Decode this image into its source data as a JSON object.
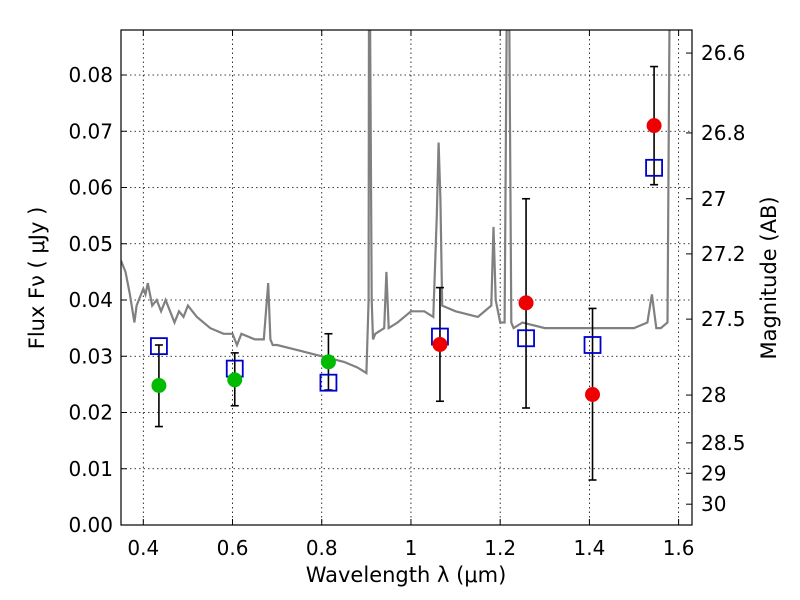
{
  "chart_data": {
    "type": "scatter",
    "xlabel": "Wavelength  λ (μm)",
    "ylabel": "Flux  Fν  ( μJy )",
    "y2label": "Magnitude (AB)",
    "xlim": [
      0.35,
      1.63
    ],
    "ylim": [
      0.0,
      0.088
    ],
    "x_ticks": [
      0.4,
      0.6,
      0.8,
      1.0,
      1.2,
      1.4,
      1.6
    ],
    "x_tick_labels": [
      "0.4",
      "0.6",
      "0.8",
      "1",
      "1.2",
      "1.4",
      "1.6"
    ],
    "y_ticks": [
      0.0,
      0.01,
      0.02,
      0.03,
      0.04,
      0.05,
      0.06,
      0.07,
      0.08
    ],
    "y_tick_labels": [
      "0.00",
      "0.01",
      "0.02",
      "0.03",
      "0.04",
      "0.05",
      "0.06",
      "0.07",
      "0.08"
    ],
    "y2_ticks": [
      {
        "label": "26.6",
        "flux": 0.0839
      },
      {
        "label": "26.8",
        "flux": 0.0697
      },
      {
        "label": "27",
        "flux": 0.058
      },
      {
        "label": "27.2",
        "flux": 0.0482
      },
      {
        "label": "27.5",
        "flux": 0.0366
      },
      {
        "label": "28",
        "flux": 0.0231
      },
      {
        "label": "28.5",
        "flux": 0.0146
      },
      {
        "label": "29",
        "flux": 0.0092
      },
      {
        "label": "30",
        "flux": 0.0037
      }
    ],
    "grid": true,
    "colors": {
      "model": "#808080",
      "green": "#00bb00",
      "red": "#ee0000",
      "square": "#0000cc",
      "errorbar": "#000000"
    },
    "series": [
      {
        "kind": "model_spectrum",
        "x": [
          0.35,
          0.36,
          0.37,
          0.38,
          0.385,
          0.39,
          0.4,
          0.405,
          0.41,
          0.42,
          0.43,
          0.44,
          0.45,
          0.46,
          0.47,
          0.48,
          0.49,
          0.5,
          0.52,
          0.55,
          0.58,
          0.6,
          0.61,
          0.62,
          0.65,
          0.67,
          0.68,
          0.685,
          0.69,
          0.7,
          0.75,
          0.8,
          0.85,
          0.88,
          0.9,
          0.905,
          0.906,
          0.908,
          0.912,
          0.915,
          0.92,
          0.94,
          0.945,
          0.95,
          0.97,
          1.0,
          1.03,
          1.05,
          1.058,
          1.062,
          1.066,
          1.07,
          1.1,
          1.15,
          1.18,
          1.185,
          1.19,
          1.2,
          1.21,
          1.215,
          1.22,
          1.225,
          1.23,
          1.25,
          1.3,
          1.35,
          1.4,
          1.45,
          1.5,
          1.53,
          1.54,
          1.55,
          1.56,
          1.575,
          1.58,
          1.582,
          1.585,
          1.59,
          1.63
        ],
        "y": [
          0.047,
          0.045,
          0.041,
          0.036,
          0.039,
          0.04,
          0.042,
          0.041,
          0.043,
          0.039,
          0.04,
          0.038,
          0.04,
          0.038,
          0.036,
          0.038,
          0.037,
          0.039,
          0.037,
          0.035,
          0.034,
          0.034,
          0.032,
          0.034,
          0.033,
          0.033,
          0.043,
          0.033,
          0.032,
          0.032,
          0.031,
          0.03,
          0.029,
          0.028,
          0.027,
          0.04,
          0.095,
          0.095,
          0.04,
          0.033,
          0.034,
          0.035,
          0.045,
          0.035,
          0.036,
          0.038,
          0.038,
          0.037,
          0.055,
          0.068,
          0.058,
          0.039,
          0.038,
          0.037,
          0.039,
          0.053,
          0.04,
          0.036,
          0.036,
          0.095,
          0.095,
          0.036,
          0.035,
          0.036,
          0.035,
          0.035,
          0.035,
          0.035,
          0.035,
          0.036,
          0.041,
          0.035,
          0.035,
          0.036,
          0.095,
          0.095,
          0.095,
          0.095,
          0.095
        ]
      },
      {
        "kind": "observed_green",
        "x": [
          0.435,
          0.605,
          0.815
        ],
        "y": [
          0.0248,
          0.0258,
          0.029
        ],
        "yerr_low": [
          0.0175,
          0.0212,
          0.024
        ],
        "yerr_high": [
          0.032,
          0.0306,
          0.034
        ]
      },
      {
        "kind": "observed_red",
        "x": [
          1.065,
          1.258,
          1.407,
          1.545
        ],
        "y": [
          0.0321,
          0.0395,
          0.0232,
          0.071
        ],
        "yerr_low": [
          0.022,
          0.0208,
          0.008,
          0.0605
        ],
        "yerr_high": [
          0.0422,
          0.058,
          0.0385,
          0.0815
        ]
      },
      {
        "kind": "model_band_squares",
        "x": [
          0.435,
          0.605,
          0.815,
          1.065,
          1.258,
          1.407,
          1.545
        ],
        "y": [
          0.0318,
          0.0278,
          0.0253,
          0.0335,
          0.0332,
          0.032,
          0.0635
        ]
      }
    ]
  }
}
